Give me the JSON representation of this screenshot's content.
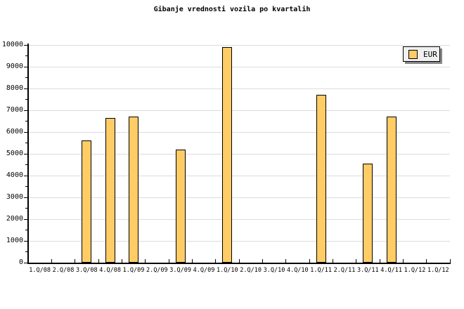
{
  "title": "Gibanje vrednosti vozila po kvartalih",
  "legend": {
    "label": "EUR",
    "position": "top-right"
  },
  "colors": {
    "background": "#ffffff",
    "bar_fill": "#ffcc66",
    "bar_border": "#000000",
    "grid": "#dcdcdc",
    "axis": "#000000",
    "text": "#000000",
    "legend_bg": "#f0f0f0",
    "legend_border": "#000000",
    "legend_shadow": "#888888"
  },
  "chart_data": {
    "type": "bar",
    "title": "Gibanje vrednosti vozila po kvartalih",
    "categories": [
      "1.Q/08",
      "2.Q/08",
      "3.Q/08",
      "4.Q/08",
      "1.Q/09",
      "2.Q/09",
      "3.Q/09",
      "4.Q/09",
      "1.Q/10",
      "2.Q/10",
      "3.Q/10",
      "4.Q/10",
      "1.Q/11",
      "2.Q/11",
      "3.Q/11",
      "4.Q/11",
      "1.Q/12",
      "1.Q/12"
    ],
    "series": [
      {
        "name": "EUR",
        "values": [
          0,
          0,
          5600,
          6650,
          6700,
          0,
          5200,
          0,
          9900,
          0,
          0,
          0,
          7700,
          0,
          4550,
          6700,
          0,
          0
        ]
      }
    ],
    "xlabel": "",
    "ylabel": "",
    "ylim": [
      0,
      10000
    ],
    "ytick_interval": 1000,
    "yminor_tick_interval": 500,
    "ytick_labels": [
      "0",
      "1000",
      "2000",
      "3000",
      "4000",
      "5000",
      "6000",
      "7000",
      "8000",
      "9000",
      "10000"
    ],
    "grid": "horizontal-major",
    "legend_position": "top-right",
    "legend_entries": [
      "EUR"
    ]
  },
  "layout_values": {
    "note": "static chart image; no interactive controls visible"
  }
}
